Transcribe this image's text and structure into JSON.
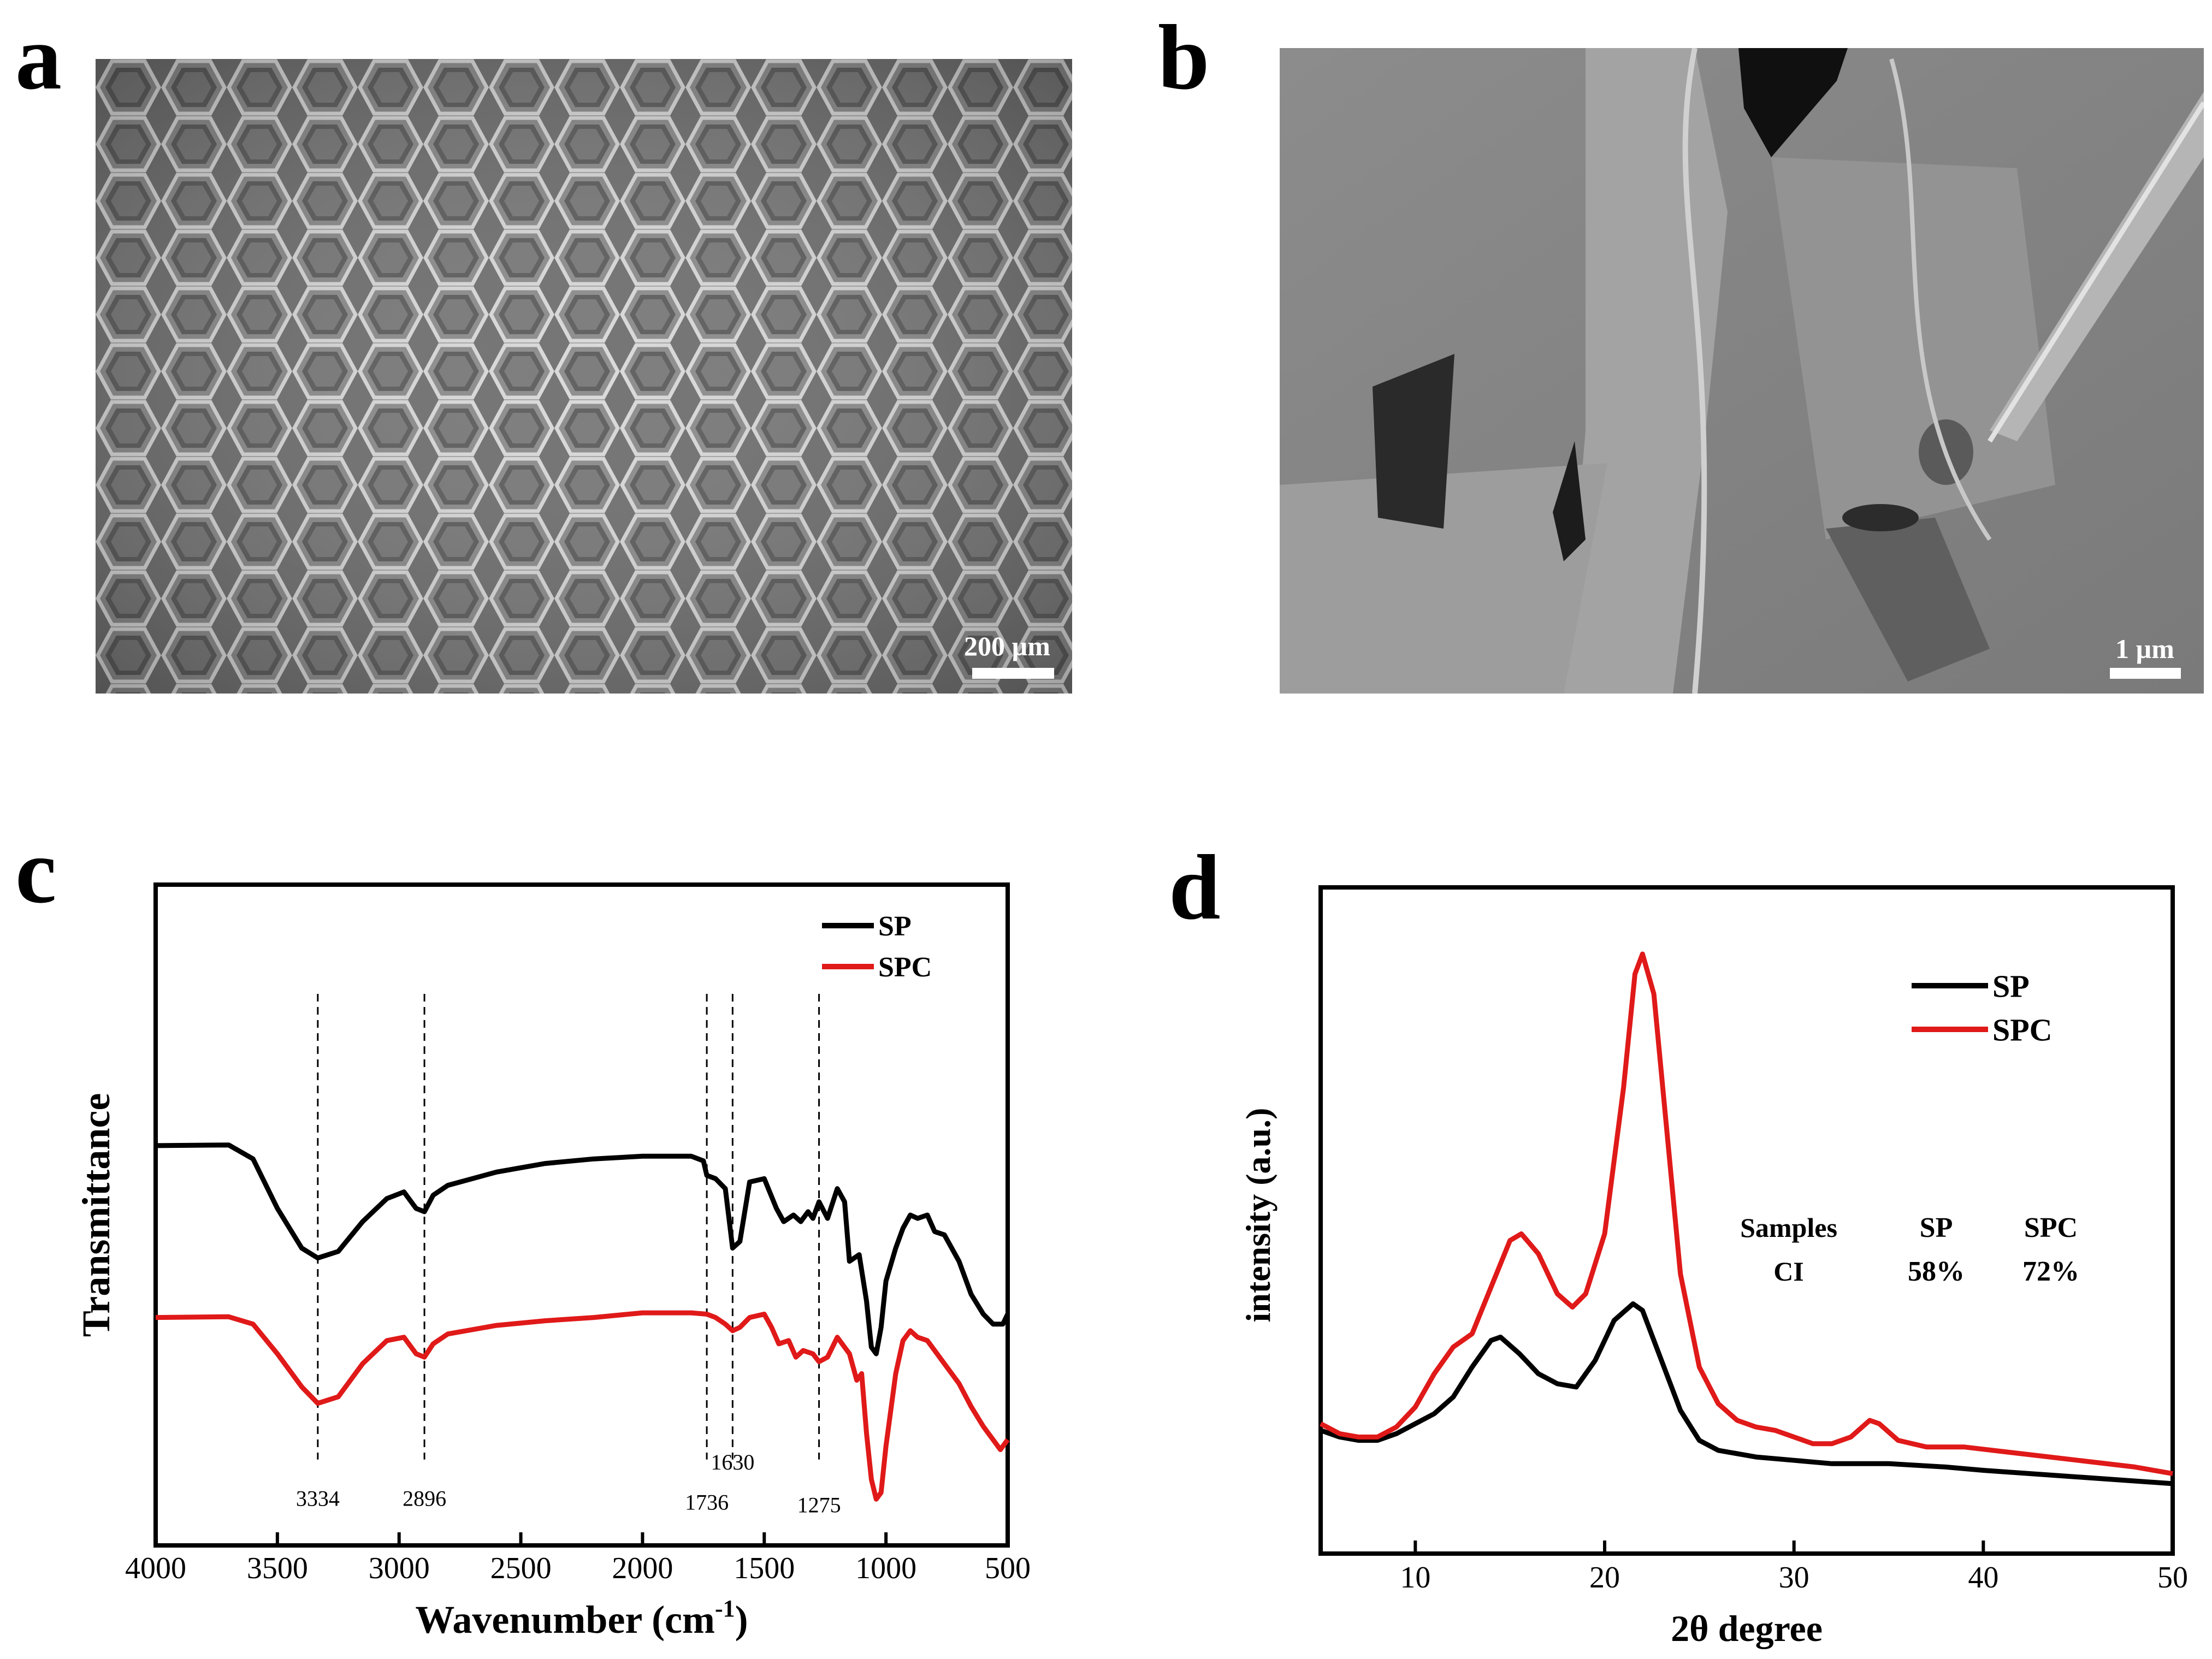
{
  "panels": {
    "a": {
      "letter": "a",
      "scale_label": "200 µm"
    },
    "b": {
      "letter": "b",
      "scale_label": "1 µm"
    },
    "c": {
      "letter": "c"
    },
    "d": {
      "letter": "d"
    }
  },
  "chart_data": [
    {
      "type": "line",
      "panel": "c",
      "xlabel": "Wavenumber (cm",
      "xlabel_sup": "-1",
      "xlabel_tail": ")",
      "ylabel": "Transmittance",
      "xlim": [
        4000,
        500
      ],
      "ylim": [
        0,
        100
      ],
      "x_ticks": [
        4000,
        3500,
        3000,
        2500,
        2000,
        1500,
        1000,
        500
      ],
      "y_ticks_shown": false,
      "legend": {
        "placement": "top-right",
        "entries": [
          "SP",
          "SPC"
        ]
      },
      "reference_lines": [
        3334,
        2896,
        1736,
        1630,
        1275
      ],
      "annotations": [
        {
          "text": "3334",
          "x": 3334,
          "y": 6.0
        },
        {
          "text": "2896",
          "x": 2896,
          "y": 6.0
        },
        {
          "text": "1736",
          "x": 1736,
          "y": 5.4
        },
        {
          "text": "1630",
          "x": 1630,
          "y": 11.5
        },
        {
          "text": "1275",
          "x": 1275,
          "y": 5.0
        }
      ],
      "series": [
        {
          "name": "SP",
          "color": "#000000",
          "points": [
            [
              4000,
              60.5
            ],
            [
              3700,
              60.6
            ],
            [
              3600,
              58.5
            ],
            [
              3500,
              51
            ],
            [
              3400,
              45
            ],
            [
              3334,
              43.5
            ],
            [
              3250,
              44.5
            ],
            [
              3150,
              49
            ],
            [
              3050,
              52.5
            ],
            [
              2980,
              53.5
            ],
            [
              2930,
              51
            ],
            [
              2896,
              50.5
            ],
            [
              2860,
              53
            ],
            [
              2800,
              54.5
            ],
            [
              2600,
              56.5
            ],
            [
              2400,
              57.8
            ],
            [
              2200,
              58.5
            ],
            [
              2000,
              58.9
            ],
            [
              1800,
              58.9
            ],
            [
              1750,
              58.2
            ],
            [
              1736,
              56
            ],
            [
              1700,
              55.5
            ],
            [
              1660,
              54
            ],
            [
              1630,
              45
            ],
            [
              1600,
              46
            ],
            [
              1560,
              55
            ],
            [
              1500,
              55.5
            ],
            [
              1450,
              51
            ],
            [
              1420,
              49
            ],
            [
              1380,
              50
            ],
            [
              1350,
              49
            ],
            [
              1320,
              50.5
            ],
            [
              1300,
              49.5
            ],
            [
              1275,
              52
            ],
            [
              1240,
              49.5
            ],
            [
              1200,
              54
            ],
            [
              1170,
              52
            ],
            [
              1150,
              43
            ],
            [
              1110,
              44
            ],
            [
              1080,
              37
            ],
            [
              1060,
              30
            ],
            [
              1040,
              29
            ],
            [
              1020,
              33
            ],
            [
              1000,
              40
            ],
            [
              960,
              45
            ],
            [
              930,
              48
            ],
            [
              900,
              50
            ],
            [
              870,
              49.5
            ],
            [
              830,
              50
            ],
            [
              800,
              47.5
            ],
            [
              760,
              47
            ],
            [
              700,
              43
            ],
            [
              650,
              38
            ],
            [
              600,
              35
            ],
            [
              560,
              33.5
            ],
            [
              520,
              33.5
            ],
            [
              500,
              35
            ]
          ]
        },
        {
          "name": "SPC",
          "color": "#e01919",
          "points": [
            [
              4000,
              34.5
            ],
            [
              3700,
              34.6
            ],
            [
              3600,
              33.5
            ],
            [
              3500,
              29
            ],
            [
              3400,
              24
            ],
            [
              3334,
              21.5
            ],
            [
              3250,
              22.5
            ],
            [
              3150,
              27.5
            ],
            [
              3050,
              31
            ],
            [
              2980,
              31.5
            ],
            [
              2930,
              29
            ],
            [
              2896,
              28.5
            ],
            [
              2860,
              30.5
            ],
            [
              2800,
              32
            ],
            [
              2600,
              33.3
            ],
            [
              2400,
              34
            ],
            [
              2200,
              34.5
            ],
            [
              2000,
              35.2
            ],
            [
              1800,
              35.2
            ],
            [
              1736,
              35
            ],
            [
              1700,
              34.5
            ],
            [
              1660,
              33.5
            ],
            [
              1630,
              32.5
            ],
            [
              1600,
              33
            ],
            [
              1560,
              34.5
            ],
            [
              1500,
              35
            ],
            [
              1470,
              33
            ],
            [
              1440,
              30.5
            ],
            [
              1400,
              31
            ],
            [
              1370,
              28.5
            ],
            [
              1340,
              29.5
            ],
            [
              1300,
              29
            ],
            [
              1275,
              27.8
            ],
            [
              1240,
              28.5
            ],
            [
              1200,
              31.5
            ],
            [
              1170,
              30
            ],
            [
              1150,
              29
            ],
            [
              1120,
              25
            ],
            [
              1100,
              26
            ],
            [
              1080,
              17
            ],
            [
              1060,
              10
            ],
            [
              1040,
              7
            ],
            [
              1020,
              8
            ],
            [
              1000,
              15
            ],
            [
              960,
              26
            ],
            [
              930,
              31
            ],
            [
              900,
              32.5
            ],
            [
              870,
              31.5
            ],
            [
              830,
              31
            ],
            [
              800,
              29.5
            ],
            [
              760,
              27.5
            ],
            [
              700,
              24.5
            ],
            [
              650,
              21
            ],
            [
              600,
              18
            ],
            [
              560,
              16
            ],
            [
              530,
              14.5
            ],
            [
              500,
              16
            ]
          ]
        }
      ]
    },
    {
      "type": "line",
      "panel": "d",
      "xlabel": "2θ degree",
      "ylabel": "intensity (a.u.)",
      "xlim": [
        5,
        50
      ],
      "ylim": [
        0,
        100
      ],
      "x_ticks": [
        10,
        20,
        30,
        40,
        50
      ],
      "y_ticks_shown": false,
      "legend": {
        "placement": "top-right",
        "entries": [
          "SP",
          "SPC"
        ]
      },
      "inset_table": {
        "header": [
          "Samples",
          "SP",
          "SPC"
        ],
        "rows": [
          [
            "CI",
            "58%",
            "72%"
          ]
        ]
      },
      "series": [
        {
          "name": "SP",
          "color": "#000000",
          "points": [
            [
              5,
              18.5
            ],
            [
              6,
              17.5
            ],
            [
              7,
              17
            ],
            [
              8,
              17
            ],
            [
              9,
              18
            ],
            [
              10,
              19.5
            ],
            [
              11,
              21
            ],
            [
              12,
              23.5
            ],
            [
              13,
              28
            ],
            [
              14,
              32
            ],
            [
              14.5,
              32.5
            ],
            [
              15.5,
              30
            ],
            [
              16.5,
              27
            ],
            [
              17.5,
              25.5
            ],
            [
              18.5,
              25
            ],
            [
              19.5,
              29
            ],
            [
              20.5,
              35
            ],
            [
              21.5,
              37.5
            ],
            [
              22,
              36.5
            ],
            [
              23,
              29
            ],
            [
              24,
              21.5
            ],
            [
              25,
              17
            ],
            [
              26,
              15.5
            ],
            [
              28,
              14.5
            ],
            [
              30,
              14
            ],
            [
              32,
              13.5
            ],
            [
              35,
              13.5
            ],
            [
              38,
              13
            ],
            [
              40,
              12.5
            ],
            [
              45,
              11.5
            ],
            [
              50,
              10.5
            ]
          ]
        },
        {
          "name": "SPC",
          "color": "#e01919",
          "points": [
            [
              5,
              19.5
            ],
            [
              6,
              18
            ],
            [
              7,
              17.5
            ],
            [
              8,
              17.5
            ],
            [
              9,
              19
            ],
            [
              10,
              22
            ],
            [
              11,
              27
            ],
            [
              12,
              31
            ],
            [
              13,
              33
            ],
            [
              14,
              40
            ],
            [
              15,
              47
            ],
            [
              15.6,
              48
            ],
            [
              16.5,
              45
            ],
            [
              17.5,
              39
            ],
            [
              18.3,
              37
            ],
            [
              19,
              39
            ],
            [
              20,
              48
            ],
            [
              21,
              70
            ],
            [
              21.6,
              87
            ],
            [
              22,
              90
            ],
            [
              22.6,
              84
            ],
            [
              23.3,
              63
            ],
            [
              24,
              42
            ],
            [
              25,
              28
            ],
            [
              26,
              22.5
            ],
            [
              27,
              20
            ],
            [
              28,
              19
            ],
            [
              29,
              18.5
            ],
            [
              30,
              17.5
            ],
            [
              31,
              16.5
            ],
            [
              32,
              16.5
            ],
            [
              33,
              17.5
            ],
            [
              34,
              20
            ],
            [
              34.5,
              19.5
            ],
            [
              35.5,
              17
            ],
            [
              37,
              16
            ],
            [
              39,
              16
            ],
            [
              42,
              15
            ],
            [
              45,
              14
            ],
            [
              48,
              13
            ],
            [
              50,
              12
            ]
          ]
        }
      ]
    }
  ]
}
